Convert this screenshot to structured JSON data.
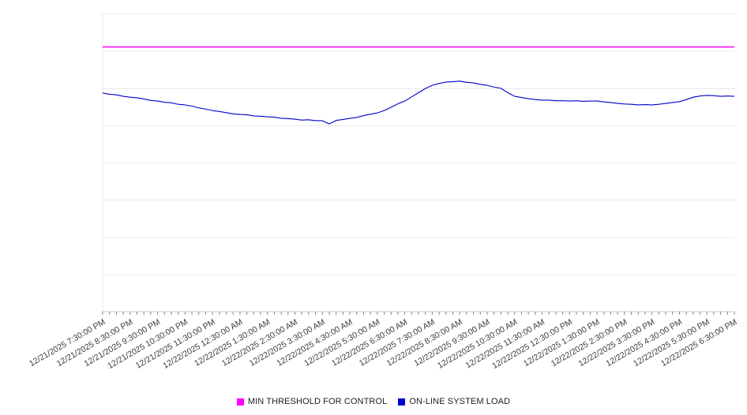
{
  "chart_data": {
    "type": "line",
    "title": "",
    "xlabel": "",
    "ylabel": "",
    "ylim": [
      0,
      100
    ],
    "y_axis_labels_visible": false,
    "y_gridline_step": 12.5,
    "grid": true,
    "legend_position": "bottom-center",
    "x_tick_every": 4,
    "x_tick_labels": [
      "12/21/2025 7:30:00 PM",
      "12/21/2025 8:30:00 PM",
      "12/21/2025 9:30:00 PM",
      "12/21/2025 10:30:00 PM",
      "12/21/2025 11:30:00 PM",
      "12/22/2025 12:30:00 AM",
      "12/22/2025 1:30:00 AM",
      "12/22/2025 2:30:00 AM",
      "12/22/2025 3:30:00 AM",
      "12/22/2025 4:30:00 AM",
      "12/22/2025 5:30:00 AM",
      "12/22/2025 6:30:00 AM",
      "12/22/2025 7:30:00 AM",
      "12/22/2025 8:30:00 AM",
      "12/22/2025 9:30:00 AM",
      "12/22/2025 10:30:00 AM",
      "12/22/2025 11:30:00 AM",
      "12/22/2025 12:30:00 PM",
      "12/22/2025 1:30:00 PM",
      "12/22/2025 2:30:00 PM",
      "12/22/2025 3:30:00 PM",
      "12/22/2025 4:30:00 PM",
      "12/22/2025 5:30:00 PM",
      "12/22/2025 6:30:00 PM"
    ],
    "series": [
      {
        "name": "MIN THRESHOLD FOR CONTROL",
        "color": "#ff00ff",
        "style": "threshold",
        "constant": 89
      },
      {
        "name": "ON-LINE SYSTEM LOAD",
        "color": "#0000cc",
        "style": "line",
        "values": [
          73.5,
          73.1,
          72.9,
          72.4,
          72.1,
          71.9,
          71.5,
          71.0,
          70.8,
          70.4,
          70.2,
          69.7,
          69.5,
          69.1,
          68.5,
          68.1,
          67.6,
          67.3,
          66.9,
          66.5,
          66.3,
          66.2,
          65.8,
          65.7,
          65.5,
          65.4,
          65.0,
          64.9,
          64.7,
          64.4,
          64.5,
          64.2,
          64.2,
          63.1,
          64.3,
          64.6,
          65.0,
          65.3,
          65.9,
          66.4,
          66.8,
          67.6,
          68.7,
          69.9,
          70.8,
          72.2,
          73.6,
          75.0,
          76.1,
          76.7,
          77.2,
          77.3,
          77.5,
          77.1,
          76.9,
          76.4,
          76.1,
          75.5,
          75.1,
          73.6,
          72.4,
          72.0,
          71.6,
          71.3,
          71.1,
          71.1,
          70.9,
          70.9,
          70.8,
          70.9,
          70.7,
          70.8,
          70.8,
          70.5,
          70.3,
          70.0,
          69.8,
          69.7,
          69.5,
          69.6,
          69.5,
          69.7,
          70.0,
          70.3,
          70.6,
          71.3,
          72.1,
          72.5,
          72.7,
          72.6,
          72.4,
          72.5,
          72.4
        ]
      }
    ]
  },
  "colors": {
    "background": "#ffffff",
    "gridline": "#e9e9e9",
    "axis_line": "#c9c9c9",
    "tick": "#888888",
    "tick_label": "#3c3c3c",
    "legend_text": "#222222"
  }
}
